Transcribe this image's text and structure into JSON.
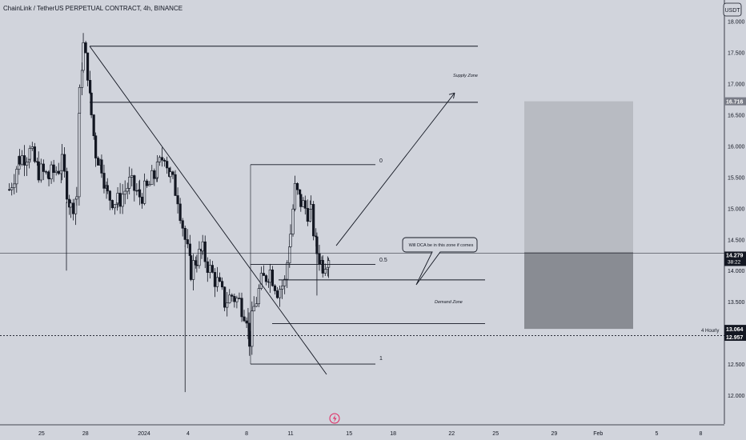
{
  "header": {
    "title": "ChainLink / TetherUS PERPETUAL CONTRACT, 4h, BINANCE"
  },
  "currency_button": {
    "label": "USDT"
  },
  "chart_data": {
    "type": "candlestick",
    "title": "ChainLink / TetherUS PERPETUAL CONTRACT, 4h, BINANCE",
    "ylim": [
      11.75,
      18.15
    ],
    "y_ticks": [
      "12.000",
      "12.500",
      "13.000",
      "13.500",
      "14.000",
      "14.500",
      "15.000",
      "15.500",
      "16.000",
      "16.500",
      "17.000",
      "17.500",
      "18.000"
    ],
    "y_tick_values": [
      12.0,
      12.5,
      13.0,
      13.5,
      14.0,
      14.5,
      15.0,
      15.5,
      16.0,
      16.5,
      17.0,
      17.5,
      18.0
    ],
    "x_ticks": [
      {
        "label": "25",
        "day": -7
      },
      {
        "label": "28",
        "day": -4
      },
      {
        "label": "2024",
        "day": 0
      },
      {
        "label": "4",
        "day": 3
      },
      {
        "label": "8",
        "day": 7
      },
      {
        "label": "11",
        "day": 10
      },
      {
        "label": "15",
        "day": 14
      },
      {
        "label": "18",
        "day": 17
      },
      {
        "label": "22",
        "day": 21
      },
      {
        "label": "25",
        "day": 24
      },
      {
        "label": "29",
        "day": 28
      },
      {
        "label": "Feb",
        "day": 31
      },
      {
        "label": "5",
        "day": 35
      },
      {
        "label": "8",
        "day": 38
      }
    ],
    "candle_anchors": [
      [
        -9.2,
        15.3
      ],
      [
        -8.5,
        15.8
      ],
      [
        -7.8,
        15.9
      ],
      [
        -7.2,
        15.6
      ],
      [
        -6.5,
        15.5
      ],
      [
        -5.6,
        15.7
      ],
      [
        -5.0,
        15.0
      ],
      [
        -4.6,
        15.2
      ],
      [
        -4.4,
        16.8
      ],
      [
        -4.15,
        17.6
      ],
      [
        -3.85,
        17.2
      ],
      [
        -3.6,
        16.5
      ],
      [
        -3.3,
        15.9
      ],
      [
        -2.9,
        15.7
      ],
      [
        -2.5,
        15.2
      ],
      [
        -1.8,
        15.1
      ],
      [
        -1.0,
        15.4
      ],
      [
        -0.3,
        15.2
      ],
      [
        0.2,
        15.3
      ],
      [
        0.9,
        15.6
      ],
      [
        1.4,
        15.9
      ],
      [
        1.8,
        15.5
      ],
      [
        2.3,
        15.2
      ],
      [
        2.8,
        14.5
      ],
      [
        3.2,
        14.0
      ],
      [
        3.6,
        14.2
      ],
      [
        4.0,
        14.3
      ],
      [
        4.5,
        14.0
      ],
      [
        5.0,
        13.8
      ],
      [
        5.5,
        13.5
      ],
      [
        6.0,
        13.6
      ],
      [
        6.5,
        13.5
      ],
      [
        7.0,
        13.3
      ],
      [
        7.2,
        12.9
      ],
      [
        7.5,
        13.4
      ],
      [
        8.0,
        13.8
      ],
      [
        8.6,
        14.0
      ],
      [
        9.1,
        13.7
      ],
      [
        9.6,
        13.8
      ],
      [
        10.0,
        14.6
      ],
      [
        10.3,
        15.3
      ],
      [
        10.7,
        15.1
      ],
      [
        11.0,
        15.0
      ],
      [
        11.4,
        14.9
      ],
      [
        11.8,
        14.3
      ],
      [
        12.2,
        14.1
      ],
      [
        12.6,
        14.25
      ]
    ],
    "current_price": "14.279",
    "countdown": "38:22",
    "price_labels": [
      {
        "label": "16.716",
        "value": 16.716
      },
      {
        "label": "14.297",
        "value": 14.297
      },
      {
        "label": "13.064",
        "value": 13.064
      },
      {
        "label": "12.957",
        "value": 12.957
      }
    ],
    "annotations": {
      "supply_zone": "Supply Zone",
      "demand_zone": "Demand Zone",
      "fib_0": "0",
      "fib_05": "0.5",
      "fib_1": "1",
      "callout": "Will DCA be in this zone if comes",
      "hourly": "4 Hourly"
    },
    "levels": {
      "supply_top": 17.6,
      "supply_bottom": 16.7,
      "fib_0": 15.7,
      "fib_05": 14.1,
      "demand_top": 13.85,
      "demand_bottom": 13.15,
      "fib_1": 12.5,
      "hourly": 12.957
    },
    "position_box": {
      "top": 16.716,
      "entry": 14.297,
      "bottom": 13.064
    },
    "colors": {
      "background": "#d1d4dc",
      "candle": "#131722",
      "label_dark": "#131722",
      "label_grey": "#787b86",
      "profit_box": "#b8bbc2",
      "loss_box": "#898c93"
    }
  }
}
